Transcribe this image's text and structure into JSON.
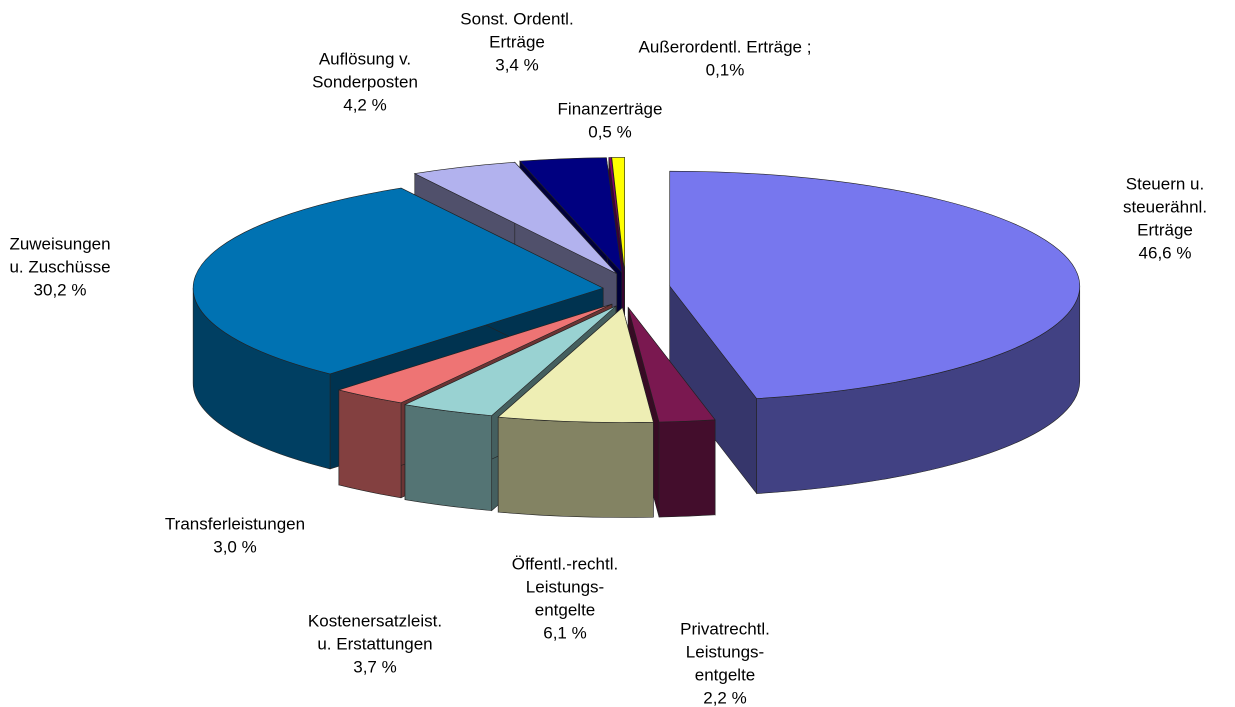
{
  "chart_data": {
    "type": "pie3d",
    "categories": [
      [
        "Steuern u.",
        "steuerähnl.",
        "Erträge"
      ],
      [
        "Privatrechtl.",
        "Leistungs-",
        "entgelte"
      ],
      [
        "Öffentl.-rechtl.",
        "Leistungs-",
        "entgelte"
      ],
      [
        "Kostenersatzleist.",
        "u. Erstattungen"
      ],
      [
        "Transferleistungen"
      ],
      [
        "Zuweisungen",
        "u. Zuschüsse"
      ],
      [
        "Auflösung v.",
        "Sonderposten"
      ],
      [
        "Sonst. Ordentl.",
        "Erträge"
      ],
      [
        "Außerordentl. Erträge ;"
      ],
      [
        "Finanzerträge"
      ]
    ],
    "values": [
      46.6,
      2.2,
      6.1,
      3.7,
      3.0,
      30.2,
      4.2,
      3.4,
      0.1,
      0.5
    ],
    "value_labels": [
      "46,6 %",
      "2,2 %",
      "6,1 %",
      "3,7 %",
      "3,0 %",
      "30,2 %",
      "4,2 %",
      "3,4 %",
      "0,1%",
      "0,5 %"
    ],
    "colors": [
      "#7777ee",
      "#7a1850",
      "#eeeeb4",
      "#99d2d2",
      "#ee7474",
      "#0072b2",
      "#b2b2ee",
      "#000080",
      "#8a0070",
      "#ffff00"
    ]
  }
}
